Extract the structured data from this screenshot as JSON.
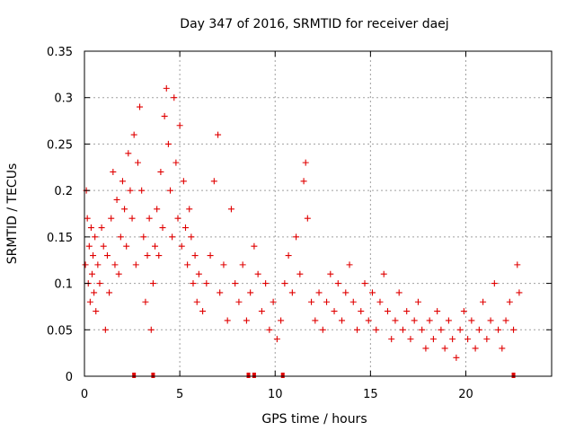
{
  "chart_data": {
    "type": "scatter",
    "title": "Day 347 of 2016, SRMTID for receiver daej",
    "xlabel": "GPS time / hours",
    "ylabel": "SRMTID / TECUs",
    "xlim": [
      0,
      24.5
    ],
    "ylim": [
      0,
      0.35
    ],
    "xticks": [
      0,
      5,
      10,
      15,
      20
    ],
    "yticks": [
      0,
      0.05,
      0.1,
      0.15,
      0.2,
      0.25,
      0.3,
      0.35
    ],
    "xtick_labels": [
      "0",
      "5",
      "10",
      "15",
      "20"
    ],
    "ytick_labels": [
      "0",
      "0.05",
      "0.1",
      "0.15",
      "0.2",
      "0.25",
      "0.3",
      "0.35"
    ],
    "grid": true,
    "marker": "+",
    "color": "#e00000",
    "series": [
      {
        "name": "SRMTID",
        "points": [
          [
            0.05,
            0.12
          ],
          [
            0.1,
            0.2
          ],
          [
            0.15,
            0.17
          ],
          [
            0.2,
            0.1
          ],
          [
            0.25,
            0.14
          ],
          [
            0.3,
            0.08
          ],
          [
            0.35,
            0.16
          ],
          [
            0.4,
            0.11
          ],
          [
            0.45,
            0.13
          ],
          [
            0.5,
            0.09
          ],
          [
            0.55,
            0.15
          ],
          [
            0.6,
            0.07
          ],
          [
            0.7,
            0.12
          ],
          [
            0.8,
            0.1
          ],
          [
            0.9,
            0.16
          ],
          [
            1.0,
            0.14
          ],
          [
            1.1,
            0.05
          ],
          [
            1.2,
            0.13
          ],
          [
            1.3,
            0.09
          ],
          [
            1.4,
            0.17
          ],
          [
            1.5,
            0.22
          ],
          [
            1.6,
            0.12
          ],
          [
            1.7,
            0.19
          ],
          [
            1.8,
            0.11
          ],
          [
            1.9,
            0.15
          ],
          [
            2.0,
            0.21
          ],
          [
            2.1,
            0.18
          ],
          [
            2.2,
            0.14
          ],
          [
            2.3,
            0.24
          ],
          [
            2.4,
            0.2
          ],
          [
            2.5,
            0.17
          ],
          [
            2.6,
            0.26
          ],
          [
            2.7,
            0.12
          ],
          [
            2.8,
            0.23
          ],
          [
            2.9,
            0.29
          ],
          [
            3.0,
            0.2
          ],
          [
            3.1,
            0.15
          ],
          [
            3.2,
            0.08
          ],
          [
            3.3,
            0.13
          ],
          [
            3.4,
            0.17
          ],
          [
            3.5,
            0.05
          ],
          [
            3.6,
            0.1
          ],
          [
            3.7,
            0.14
          ],
          [
            3.8,
            0.18
          ],
          [
            3.9,
            0.13
          ],
          [
            4.0,
            0.22
          ],
          [
            4.1,
            0.16
          ],
          [
            4.2,
            0.28
          ],
          [
            4.3,
            0.31
          ],
          [
            4.4,
            0.25
          ],
          [
            4.5,
            0.2
          ],
          [
            4.6,
            0.15
          ],
          [
            4.7,
            0.3
          ],
          [
            4.8,
            0.23
          ],
          [
            4.9,
            0.17
          ],
          [
            5.0,
            0.27
          ],
          [
            5.1,
            0.14
          ],
          [
            5.2,
            0.21
          ],
          [
            5.3,
            0.16
          ],
          [
            5.4,
            0.12
          ],
          [
            5.5,
            0.18
          ],
          [
            5.6,
            0.15
          ],
          [
            5.7,
            0.1
          ],
          [
            5.8,
            0.13
          ],
          [
            5.9,
            0.08
          ],
          [
            6.0,
            0.11
          ],
          [
            6.2,
            0.07
          ],
          [
            6.4,
            0.1
          ],
          [
            6.6,
            0.13
          ],
          [
            6.8,
            0.21
          ],
          [
            7.0,
            0.26
          ],
          [
            7.1,
            0.09
          ],
          [
            7.3,
            0.12
          ],
          [
            7.5,
            0.06
          ],
          [
            7.7,
            0.18
          ],
          [
            7.9,
            0.1
          ],
          [
            8.1,
            0.08
          ],
          [
            8.3,
            0.12
          ],
          [
            8.5,
            0.06
          ],
          [
            8.7,
            0.09
          ],
          [
            8.9,
            0.14
          ],
          [
            9.1,
            0.11
          ],
          [
            9.3,
            0.07
          ],
          [
            9.5,
            0.1
          ],
          [
            9.7,
            0.05
          ],
          [
            9.9,
            0.08
          ],
          [
            10.1,
            0.04
          ],
          [
            10.3,
            0.06
          ],
          [
            10.5,
            0.1
          ],
          [
            10.7,
            0.13
          ],
          [
            10.9,
            0.09
          ],
          [
            11.1,
            0.15
          ],
          [
            11.3,
            0.11
          ],
          [
            11.5,
            0.21
          ],
          [
            11.6,
            0.23
          ],
          [
            11.7,
            0.17
          ],
          [
            11.9,
            0.08
          ],
          [
            12.1,
            0.06
          ],
          [
            12.3,
            0.09
          ],
          [
            12.5,
            0.05
          ],
          [
            12.7,
            0.08
          ],
          [
            12.9,
            0.11
          ],
          [
            13.1,
            0.07
          ],
          [
            13.3,
            0.1
          ],
          [
            13.5,
            0.06
          ],
          [
            13.7,
            0.09
          ],
          [
            13.9,
            0.12
          ],
          [
            14.1,
            0.08
          ],
          [
            14.3,
            0.05
          ],
          [
            14.5,
            0.07
          ],
          [
            14.7,
            0.1
          ],
          [
            14.9,
            0.06
          ],
          [
            15.1,
            0.09
          ],
          [
            15.3,
            0.05
          ],
          [
            15.5,
            0.08
          ],
          [
            15.7,
            0.11
          ],
          [
            15.9,
            0.07
          ],
          [
            16.1,
            0.04
          ],
          [
            16.3,
            0.06
          ],
          [
            16.5,
            0.09
          ],
          [
            16.7,
            0.05
          ],
          [
            16.9,
            0.07
          ],
          [
            17.1,
            0.04
          ],
          [
            17.3,
            0.06
          ],
          [
            17.5,
            0.08
          ],
          [
            17.7,
            0.05
          ],
          [
            17.9,
            0.03
          ],
          [
            18.1,
            0.06
          ],
          [
            18.3,
            0.04
          ],
          [
            18.5,
            0.07
          ],
          [
            18.7,
            0.05
          ],
          [
            18.9,
            0.03
          ],
          [
            19.1,
            0.06
          ],
          [
            19.3,
            0.04
          ],
          [
            19.5,
            0.02
          ],
          [
            19.7,
            0.05
          ],
          [
            19.9,
            0.07
          ],
          [
            20.1,
            0.04
          ],
          [
            20.3,
            0.06
          ],
          [
            20.5,
            0.03
          ],
          [
            20.7,
            0.05
          ],
          [
            20.9,
            0.08
          ],
          [
            21.1,
            0.04
          ],
          [
            21.3,
            0.06
          ],
          [
            21.5,
            0.1
          ],
          [
            21.7,
            0.05
          ],
          [
            21.9,
            0.03
          ],
          [
            22.1,
            0.06
          ],
          [
            22.3,
            0.08
          ],
          [
            22.5,
            0.05
          ],
          [
            22.7,
            0.12
          ],
          [
            22.8,
            0.09
          ]
        ]
      }
    ],
    "zero_markers_x": [
      2.6,
      3.6,
      8.6,
      8.9,
      10.4,
      22.5
    ]
  }
}
